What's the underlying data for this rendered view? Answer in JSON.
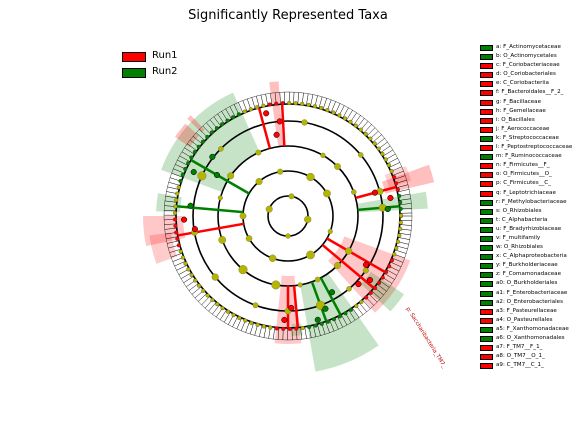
{
  "title": "Significantly Represented Taxa",
  "colors": {
    "run1": "#ff0000",
    "run2": "#008000",
    "node_neutral": "#b5b500"
  },
  "legend": [
    {
      "label": "Run1",
      "color": "#ff0000"
    },
    {
      "label": "Run2",
      "color": "#008000"
    }
  ],
  "taxa_key": [
    {
      "label": "a: F_Actinomycetaceae",
      "group": "Run2"
    },
    {
      "label": "b: O_Actinomycetales",
      "group": "Run2"
    },
    {
      "label": "c: F_Coriobacteriaceae",
      "group": "Run1"
    },
    {
      "label": "d: O_Coriobacteriales",
      "group": "Run1"
    },
    {
      "label": "e: C_Coriobacteriia",
      "group": "Run1"
    },
    {
      "label": "f: F_Bacteroidales__F_2_",
      "group": "Run1"
    },
    {
      "label": "g: F_Bacillaceae",
      "group": "Run1"
    },
    {
      "label": "h: F_Gemellaceae",
      "group": "Run1"
    },
    {
      "label": "i: O_Bacillales",
      "group": "Run1"
    },
    {
      "label": "j: F_Aerococcaceae",
      "group": "Run1"
    },
    {
      "label": "k: F_Streptococcaceae",
      "group": "Run2"
    },
    {
      "label": "l: F_Peptostreptococcaceae",
      "group": "Run1"
    },
    {
      "label": "m: F_Ruminococcaceae",
      "group": "Run2"
    },
    {
      "label": "n: F_Firmicutes__F_",
      "group": "Run1"
    },
    {
      "label": "o: O_Firmicutes__O_",
      "group": "Run1"
    },
    {
      "label": "p: C_Firmicutes__C_",
      "group": "Run1"
    },
    {
      "label": "q: F_Leptotrichiaceae",
      "group": "Run1"
    },
    {
      "label": "r: F_Methylobacteriaceae",
      "group": "Run2"
    },
    {
      "label": "s: O_Rhizobiales",
      "group": "Run2"
    },
    {
      "label": "t: C_Alphabacteria",
      "group": "Run2"
    },
    {
      "label": "u: F_Bradyrhizobiaceae",
      "group": "Run2"
    },
    {
      "label": "v: F_multifamily",
      "group": "Run2"
    },
    {
      "label": "w: O_Rhizobiales",
      "group": "Run2"
    },
    {
      "label": "x: C_Alphaproteobacteria",
      "group": "Run2"
    },
    {
      "label": "y: F_Burkholderiaceae",
      "group": "Run2"
    },
    {
      "label": "z: F_Comamonadaceae",
      "group": "Run2"
    },
    {
      "label": "a0: O_Burkholderiales",
      "group": "Run2"
    },
    {
      "label": "a1: F_Enterobacteriaceae",
      "group": "Run2"
    },
    {
      "label": "a2: O_Enterobacteriales",
      "group": "Run2"
    },
    {
      "label": "a3: F_Pasteurellaceae",
      "group": "Run1"
    },
    {
      "label": "a4: O_Pasteurellales",
      "group": "Run1"
    },
    {
      "label": "a5: F_Xanthomonadaceae",
      "group": "Run2"
    },
    {
      "label": "a6: O_Xanthomonadales",
      "group": "Run2"
    },
    {
      "label": "a7: F_TM7__F_1_",
      "group": "Run1"
    },
    {
      "label": "a8: O_TM7__O_1_",
      "group": "Run1"
    },
    {
      "label": "a9: C_TM7__C_1_",
      "group": "Run1"
    }
  ],
  "sector_labels": [
    {
      "text": "p: Saccharibacteria_TM7_",
      "group": "Run1"
    }
  ]
}
